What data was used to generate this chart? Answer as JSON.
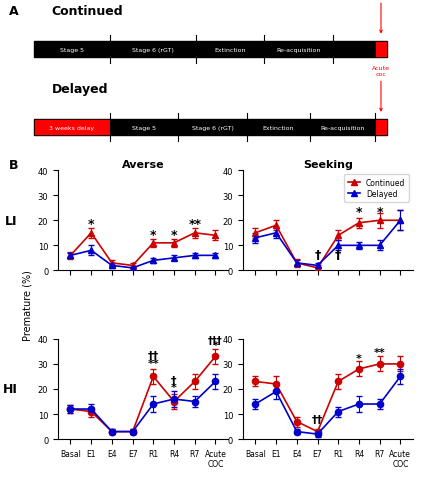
{
  "x_labels": [
    "Basal",
    "E1",
    "E4",
    "E7",
    "R1",
    "R4",
    "R7",
    "Acute\nCOC"
  ],
  "x_positions": [
    0,
    1,
    2,
    3,
    4,
    5,
    6,
    7
  ],
  "LI_averse_continued": [
    6,
    15,
    3,
    2,
    11,
    11,
    15,
    14
  ],
  "LI_averse_continued_err": [
    1.5,
    2,
    1,
    1,
    1.5,
    1.5,
    2,
    2
  ],
  "LI_averse_delayed": [
    6,
    8,
    2,
    1,
    4,
    5,
    6,
    6
  ],
  "LI_averse_delayed_err": [
    1,
    2,
    1,
    0.5,
    1,
    1,
    1,
    1
  ],
  "LI_seeking_continued": [
    15,
    18,
    3,
    1,
    14,
    19,
    20,
    20
  ],
  "LI_seeking_continued_err": [
    2,
    2,
    1.5,
    1,
    2,
    2,
    3,
    4
  ],
  "LI_seeking_delayed": [
    13,
    15,
    3,
    2,
    10,
    10,
    10,
    20
  ],
  "LI_seeking_delayed_err": [
    2,
    2,
    1,
    1,
    2,
    1.5,
    2,
    4
  ],
  "HI_averse_continued": [
    12,
    11,
    3,
    3,
    25,
    15,
    23,
    33
  ],
  "HI_averse_continued_err": [
    1.5,
    2,
    1,
    1,
    3,
    3,
    3,
    3
  ],
  "HI_averse_delayed": [
    12,
    12,
    3,
    3,
    14,
    16,
    15,
    23
  ],
  "HI_averse_delayed_err": [
    1.5,
    2,
    1,
    1,
    3,
    3,
    2,
    3
  ],
  "HI_seeking_continued": [
    23,
    22,
    7,
    3,
    23,
    28,
    30,
    30
  ],
  "HI_seeking_continued_err": [
    2,
    3,
    2,
    1,
    3,
    3,
    3,
    3
  ],
  "HI_seeking_delayed": [
    14,
    19,
    3,
    2,
    11,
    14,
    14,
    25
  ],
  "HI_seeking_delayed_err": [
    2,
    3,
    1,
    1,
    2,
    3,
    2,
    3
  ],
  "red_color": "#cc0000",
  "blue_color": "#0000cc",
  "title_averse": "Averse",
  "title_seeking": "Seeking",
  "label_LI": "LI",
  "label_HI": "HI",
  "ylabel": "Premature (%)",
  "ylim": [
    0,
    40
  ],
  "yticks": [
    0,
    10,
    20,
    30,
    40
  ],
  "cont_bar_stages": [
    "Stage 5",
    "Stage 6 (rGT)",
    "Extinction",
    "Re-acquisition"
  ],
  "del_bar_stages": [
    "3 weeks delay",
    "Stage 5",
    "Stage 6 (rGT)",
    "Extinction",
    "Re-acquisition"
  ]
}
